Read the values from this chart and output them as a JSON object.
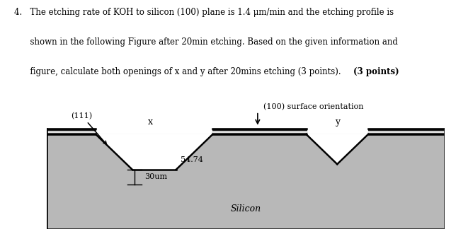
{
  "fig_bg": "#ffffff",
  "silicon_color": "#b8b8b8",
  "outline_color": "#000000",
  "mask_dark": "#1a1a1a",
  "mask_light": "#e0e0e0",
  "label_111": "(111)",
  "label_x": "x",
  "label_y": "y",
  "label_angle": "54.74",
  "label_depth": "30um",
  "label_silicon": "Silicon",
  "label_surface": "(100) surface orientation",
  "text_line1": "4.   The etching rate of KOH to silicon (100) plane is 1.4 μm/min and the etching profile is",
  "text_line2": "      shown in the following Figure after 20min etching. Based on the given information and",
  "text_line3": "      figure, calculate both openings of x and y after 20mins etching (3 points). (3 points)"
}
